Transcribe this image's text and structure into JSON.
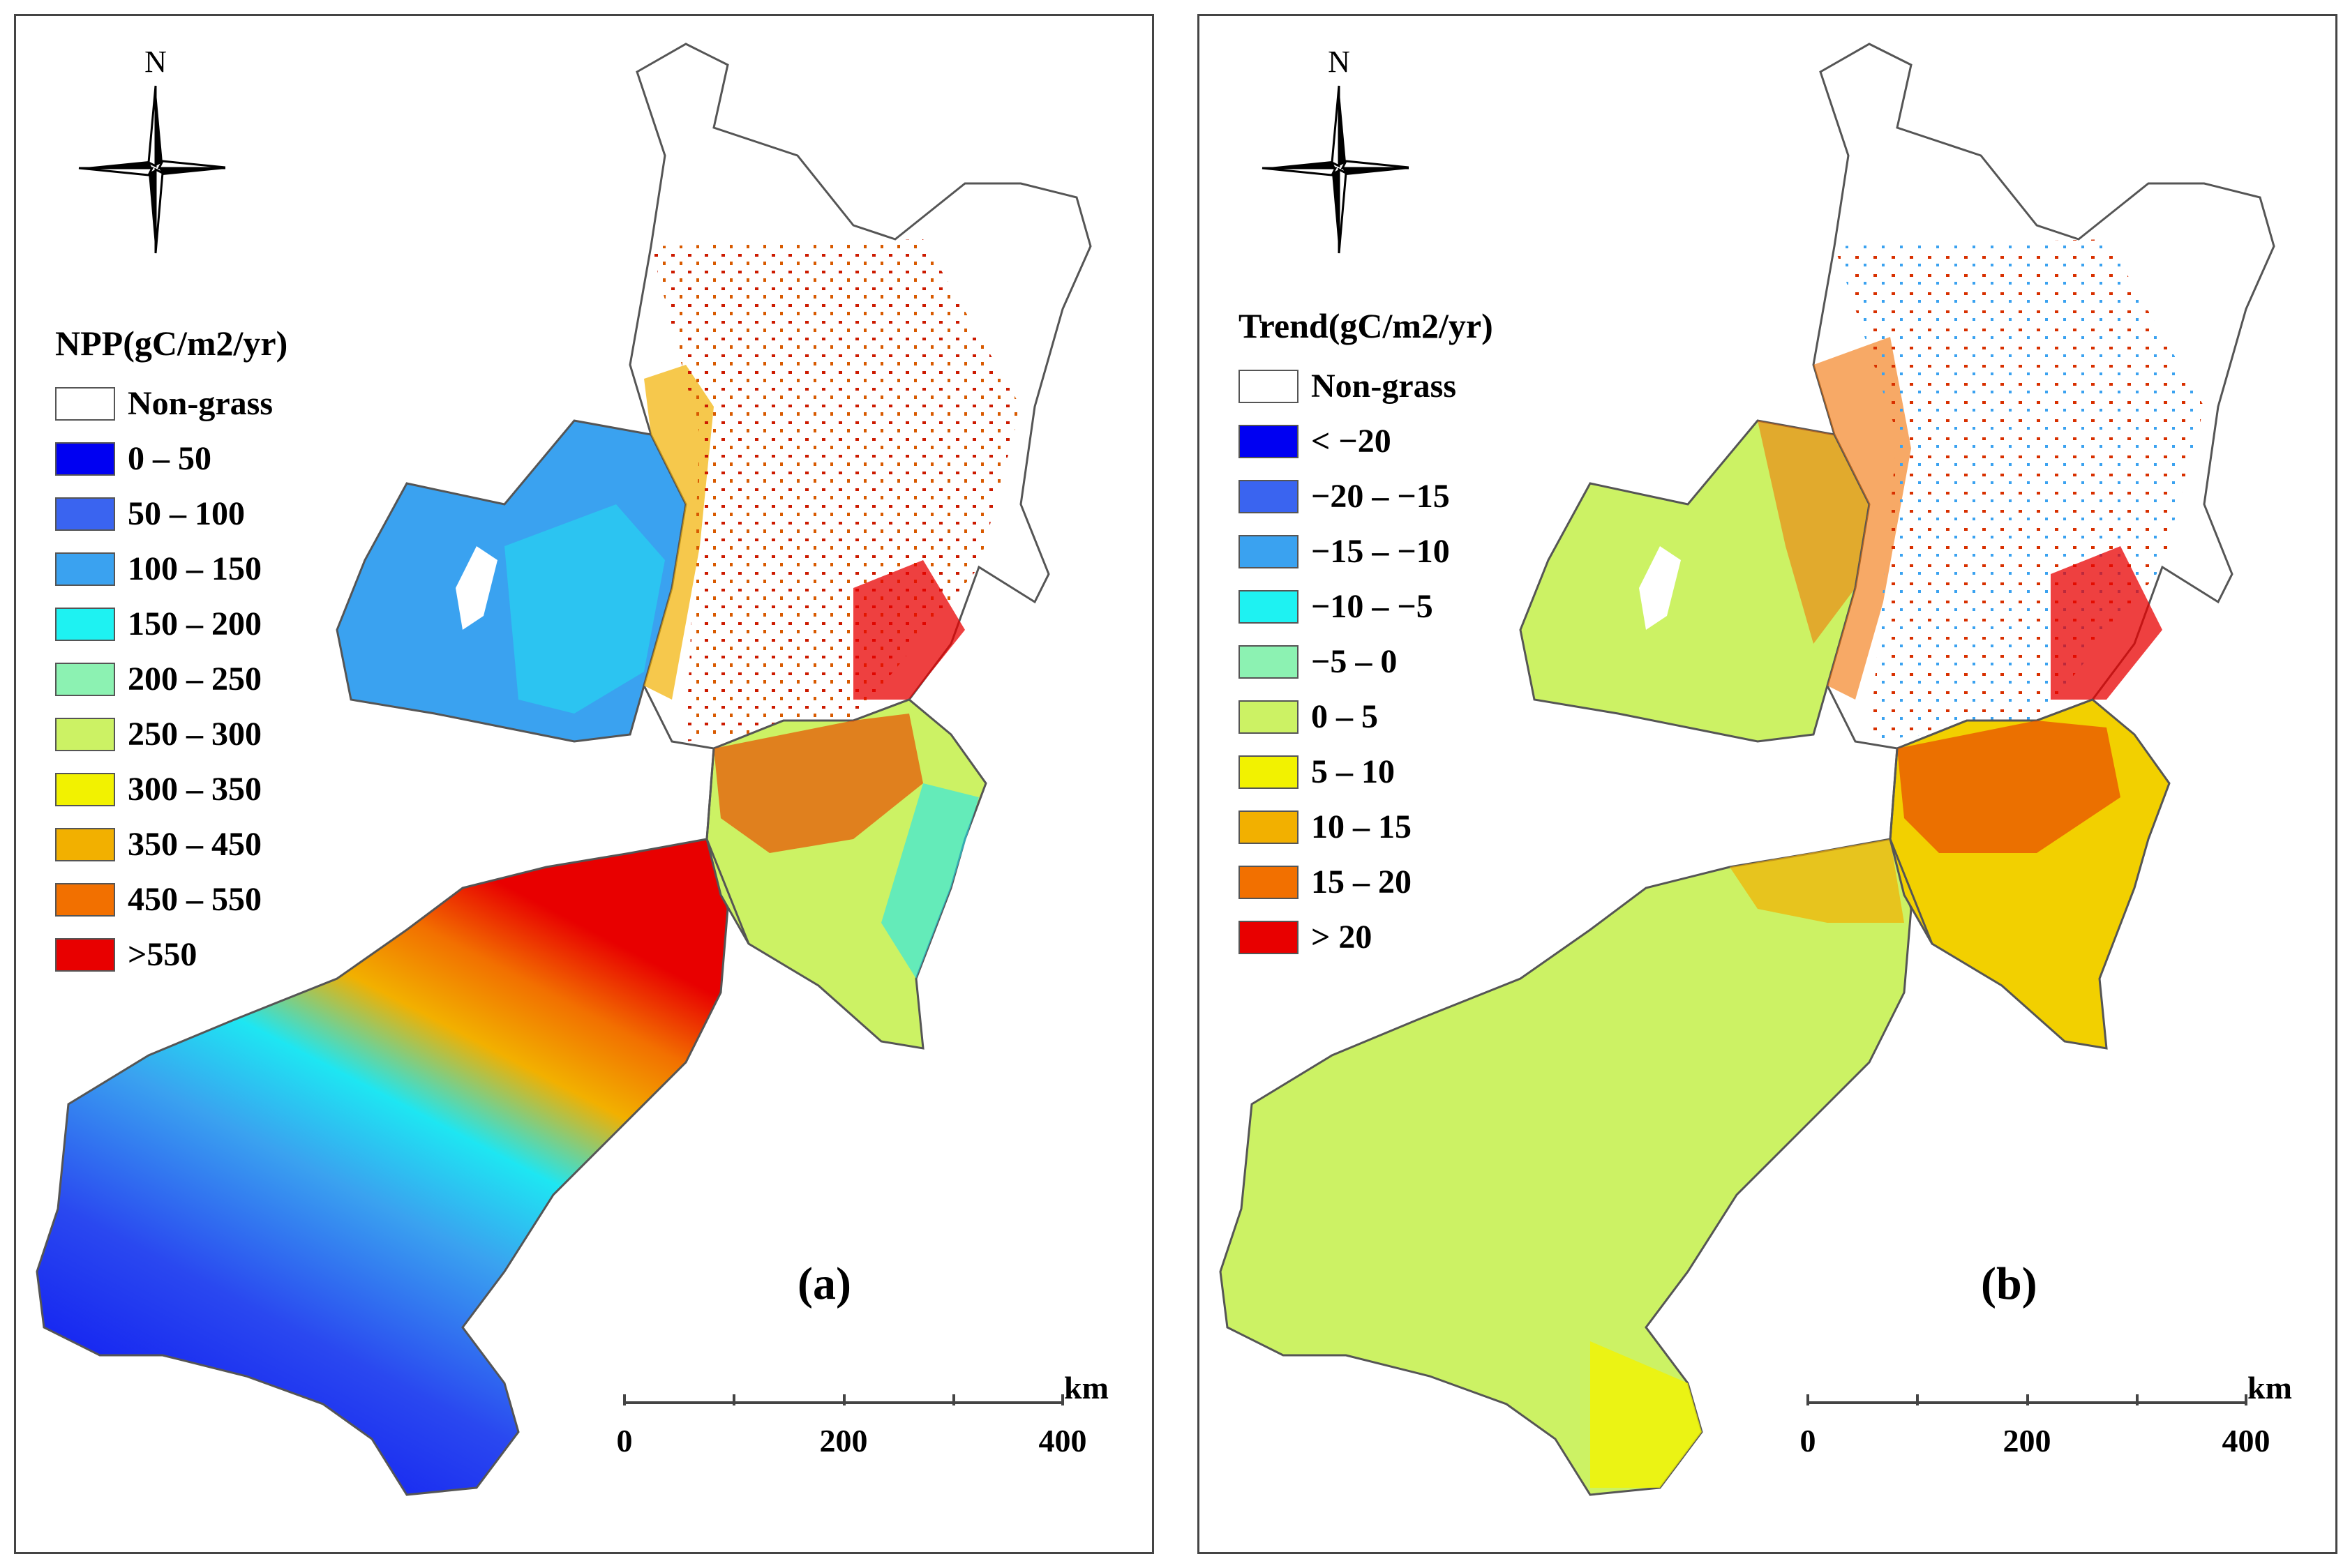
{
  "panels": [
    {
      "id": "a",
      "north_label": "N",
      "legend_title": "NPP(gC/m2/yr)",
      "legend": [
        {
          "label": "Non-grass",
          "color": "#ffffff"
        },
        {
          "label": "0 – 50",
          "color": "#0000f2"
        },
        {
          "label": "50 – 100",
          "color": "#3a64f0"
        },
        {
          "label": "100 – 150",
          "color": "#3aa2f0"
        },
        {
          "label": "150 – 200",
          "color": "#1ef2f2"
        },
        {
          "label": "200 – 250",
          "color": "#8cf2b2"
        },
        {
          "label": "250 – 300",
          "color": "#ccf264"
        },
        {
          "label": "300 – 350",
          "color": "#f2f200"
        },
        {
          "label": "350 – 450",
          "color": "#f2b000"
        },
        {
          "label": "450 – 550",
          "color": "#f27000"
        },
        {
          "label": ">550",
          "color": "#e80000"
        }
      ],
      "panel_label": "(a)",
      "scale": {
        "unit": "km",
        "labels": [
          "0",
          "200",
          "400"
        ]
      }
    },
    {
      "id": "b",
      "north_label": "N",
      "legend_title": "Trend(gC/m2/yr)",
      "legend": [
        {
          "label": "Non-grass",
          "color": "#ffffff"
        },
        {
          "label": "< −20",
          "color": "#0000f2"
        },
        {
          "label": "−20 – −15",
          "color": "#3a64f0"
        },
        {
          "label": "−15 – −10",
          "color": "#3aa2f0"
        },
        {
          "label": "−10 – −5",
          "color": "#1ef2f2"
        },
        {
          "label": "−5 – 0",
          "color": "#8cf2b2"
        },
        {
          "label": "0 – 5",
          "color": "#ccf264"
        },
        {
          "label": "5 – 10",
          "color": "#f2f200"
        },
        {
          "label": "10 – 15",
          "color": "#f2b000"
        },
        {
          "label": "15 – 20",
          "color": "#f27000"
        },
        {
          "label": "> 20",
          "color": "#e80000"
        }
      ],
      "panel_label": "(b)",
      "scale": {
        "unit": "km",
        "labels": [
          "0",
          "200",
          "400"
        ]
      }
    }
  ]
}
